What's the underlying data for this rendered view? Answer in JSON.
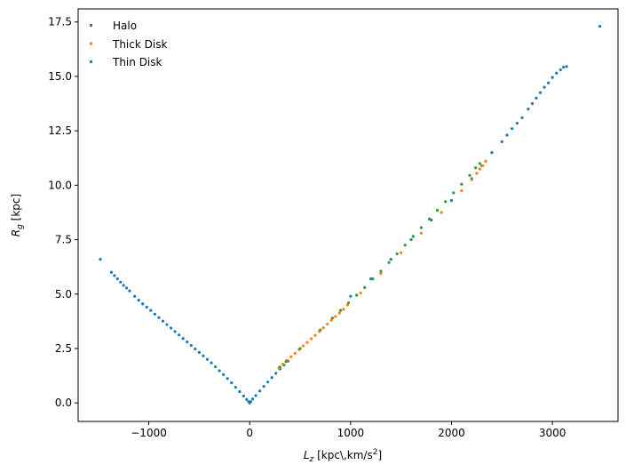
{
  "chart_data": {
    "type": "scatter",
    "title": "",
    "xlabel": {
      "base": "L",
      "sub": "z",
      "unit_prefix": " [kpc\\,km/s",
      "unit_sup": "2",
      "unit_suffix": "]"
    },
    "ylabel": {
      "base": "R",
      "sub": "g",
      "unit": " [kpc]"
    },
    "xlim": [
      -1700,
      3650
    ],
    "ylim": [
      -0.85,
      18.1
    ],
    "xticks": [
      -1000,
      0,
      1000,
      2000,
      3000
    ],
    "xtick_labels": [
      "−1000",
      "0",
      "1000",
      "2000",
      "3000"
    ],
    "yticks": [
      0.0,
      2.5,
      5.0,
      7.5,
      10.0,
      12.5,
      15.0,
      17.5
    ],
    "ytick_labels": [
      "0.0",
      "2.5",
      "5.0",
      "7.5",
      "10.0",
      "12.5",
      "15.0",
      "17.5"
    ],
    "grid": false,
    "legend_position": "top-left",
    "series": [
      {
        "name": "Halo",
        "color": "#1f77b4",
        "points": [
          [
            -1480,
            6.6
          ],
          [
            -1370,
            6.0
          ],
          [
            -1340,
            5.85
          ],
          [
            -1310,
            5.7
          ],
          [
            -1280,
            5.55
          ],
          [
            -1250,
            5.4
          ],
          [
            -1220,
            5.28
          ],
          [
            -1190,
            5.15
          ],
          [
            -1140,
            4.9
          ],
          [
            -1100,
            4.72
          ],
          [
            -1060,
            4.55
          ],
          [
            -1020,
            4.4
          ],
          [
            -980,
            4.25
          ],
          [
            -940,
            4.08
          ],
          [
            -900,
            3.92
          ],
          [
            -860,
            3.76
          ],
          [
            -820,
            3.6
          ],
          [
            -780,
            3.44
          ],
          [
            -740,
            3.28
          ],
          [
            -700,
            3.12
          ],
          [
            -660,
            2.96
          ],
          [
            -620,
            2.8
          ],
          [
            -580,
            2.64
          ],
          [
            -540,
            2.48
          ],
          [
            -500,
            2.32
          ],
          [
            -460,
            2.16
          ],
          [
            -420,
            2.0
          ],
          [
            -380,
            1.84
          ],
          [
            -340,
            1.66
          ],
          [
            -300,
            1.48
          ],
          [
            -260,
            1.3
          ],
          [
            -220,
            1.12
          ],
          [
            -180,
            0.92
          ],
          [
            -140,
            0.72
          ],
          [
            -100,
            0.52
          ],
          [
            -60,
            0.32
          ],
          [
            -30,
            0.16
          ],
          [
            -10,
            0.06
          ],
          [
            0,
            0.0
          ],
          [
            10,
            0.06
          ],
          [
            30,
            0.18
          ],
          [
            60,
            0.34
          ],
          [
            100,
            0.55
          ],
          [
            140,
            0.76
          ],
          [
            180,
            0.96
          ],
          [
            220,
            1.16
          ],
          [
            260,
            1.36
          ],
          [
            300,
            1.56
          ],
          [
            340,
            1.74
          ],
          [
            380,
            1.92
          ],
          [
            1000,
            4.9
          ],
          [
            1200,
            5.7
          ],
          [
            1400,
            6.6
          ],
          [
            1600,
            7.5
          ],
          [
            1800,
            8.4
          ],
          [
            2000,
            9.3
          ],
          [
            2200,
            10.3
          ],
          [
            2300,
            10.9
          ],
          [
            2400,
            11.5
          ],
          [
            2500,
            12.0
          ],
          [
            2550,
            12.3
          ],
          [
            2600,
            12.6
          ],
          [
            2650,
            12.85
          ],
          [
            2700,
            13.1
          ],
          [
            2760,
            13.5
          ],
          [
            2800,
            13.75
          ],
          [
            2840,
            14.0
          ],
          [
            2880,
            14.25
          ],
          [
            2920,
            14.5
          ],
          [
            2960,
            14.7
          ],
          [
            3000,
            14.95
          ],
          [
            3040,
            15.15
          ],
          [
            3080,
            15.3
          ],
          [
            3110,
            15.42
          ],
          [
            3140,
            15.45
          ],
          [
            3470,
            17.3
          ]
        ]
      },
      {
        "name": "Thick Disk",
        "color": "#ff7f0e",
        "points": [
          [
            290,
            1.6
          ],
          [
            330,
            1.78
          ],
          [
            370,
            1.96
          ],
          [
            410,
            2.12
          ],
          [
            450,
            2.28
          ],
          [
            490,
            2.45
          ],
          [
            530,
            2.62
          ],
          [
            570,
            2.78
          ],
          [
            610,
            2.95
          ],
          [
            650,
            3.1
          ],
          [
            690,
            3.28
          ],
          [
            730,
            3.45
          ],
          [
            770,
            3.62
          ],
          [
            810,
            3.8
          ],
          [
            850,
            3.97
          ],
          [
            890,
            4.13
          ],
          [
            930,
            4.3
          ],
          [
            970,
            4.5
          ],
          [
            1100,
            5.05
          ],
          [
            1300,
            5.95
          ],
          [
            1500,
            6.9
          ],
          [
            1700,
            7.8
          ],
          [
            1900,
            8.75
          ],
          [
            2100,
            9.75
          ],
          [
            2200,
            10.25
          ],
          [
            2250,
            10.55
          ],
          [
            2280,
            10.75
          ],
          [
            2310,
            10.9
          ],
          [
            2340,
            11.1
          ]
        ]
      },
      {
        "name": "Thin Disk",
        "color": "#2ca02c",
        "points": [
          [
            300,
            1.65
          ],
          [
            360,
            1.9
          ],
          [
            500,
            2.5
          ],
          [
            700,
            3.35
          ],
          [
            820,
            3.9
          ],
          [
            900,
            4.25
          ],
          [
            980,
            4.6
          ],
          [
            1060,
            4.95
          ],
          [
            1140,
            5.3
          ],
          [
            1220,
            5.7
          ],
          [
            1300,
            6.05
          ],
          [
            1380,
            6.45
          ],
          [
            1460,
            6.85
          ],
          [
            1540,
            7.25
          ],
          [
            1620,
            7.65
          ],
          [
            1700,
            8.05
          ],
          [
            1780,
            8.45
          ],
          [
            1860,
            8.85
          ],
          [
            1940,
            9.25
          ],
          [
            2020,
            9.65
          ],
          [
            2100,
            10.05
          ],
          [
            2180,
            10.45
          ],
          [
            2240,
            10.8
          ],
          [
            2280,
            11.0
          ]
        ]
      }
    ]
  }
}
